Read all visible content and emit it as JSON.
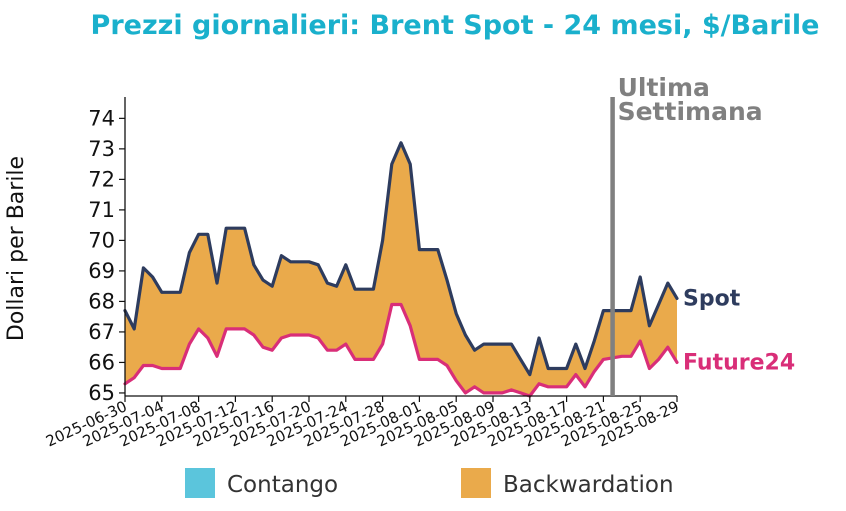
{
  "colors": {
    "title": "#1ab0cc",
    "spot": "#2e3c5e",
    "future": "#d92e78",
    "backwardation": "#eaaa4b",
    "contango": "#5bc5dc",
    "marker": "#808080"
  },
  "chart_data": {
    "type": "area",
    "title": "Prezzi giornalieri: Brent Spot - 24 mesi, $/Barile",
    "ylabel": "Dollari per Barile",
    "xlabel": "",
    "ylim": [
      64.9,
      74.7
    ],
    "xlim": [
      "2025-06-30",
      "2025-08-29"
    ],
    "yticks": [
      65,
      66,
      67,
      68,
      69,
      70,
      71,
      72,
      73,
      74
    ],
    "xticks": [
      "2025-06-30",
      "2025-07-04",
      "2025-07-08",
      "2025-07-12",
      "2025-07-16",
      "2025-07-20",
      "2025-07-24",
      "2025-07-28",
      "2025-08-01",
      "2025-08-05",
      "2025-08-09",
      "2025-08-13",
      "2025-08-17",
      "2025-08-21",
      "2025-08-25",
      "2025-08-29"
    ],
    "grid": false,
    "annotation": {
      "date": "2025-08-22",
      "lines": [
        "Ultima",
        "Settimana"
      ]
    },
    "series": [
      {
        "name": "Spot",
        "points": [
          [
            "2025-06-30",
            67.7
          ],
          [
            "2025-07-01",
            67.1
          ],
          [
            "2025-07-02",
            69.1
          ],
          [
            "2025-07-03",
            68.8
          ],
          [
            "2025-07-04",
            68.3
          ],
          [
            "2025-07-06",
            68.3
          ],
          [
            "2025-07-07",
            69.6
          ],
          [
            "2025-07-08",
            70.2
          ],
          [
            "2025-07-09",
            70.2
          ],
          [
            "2025-07-10",
            68.6
          ],
          [
            "2025-07-11",
            70.4
          ],
          [
            "2025-07-13",
            70.4
          ],
          [
            "2025-07-14",
            69.2
          ],
          [
            "2025-07-15",
            68.7
          ],
          [
            "2025-07-16",
            68.5
          ],
          [
            "2025-07-17",
            69.5
          ],
          [
            "2025-07-18",
            69.3
          ],
          [
            "2025-07-20",
            69.3
          ],
          [
            "2025-07-21",
            69.2
          ],
          [
            "2025-07-22",
            68.6
          ],
          [
            "2025-07-23",
            68.5
          ],
          [
            "2025-07-24",
            69.2
          ],
          [
            "2025-07-25",
            68.4
          ],
          [
            "2025-07-27",
            68.4
          ],
          [
            "2025-07-28",
            70.0
          ],
          [
            "2025-07-29",
            72.5
          ],
          [
            "2025-07-30",
            73.2
          ],
          [
            "2025-07-31",
            72.5
          ],
          [
            "2025-08-01",
            69.7
          ],
          [
            "2025-08-03",
            69.7
          ],
          [
            "2025-08-04",
            68.7
          ],
          [
            "2025-08-05",
            67.6
          ],
          [
            "2025-08-06",
            66.9
          ],
          [
            "2025-08-07",
            66.4
          ],
          [
            "2025-08-08",
            66.6
          ],
          [
            "2025-08-10",
            66.6
          ],
          [
            "2025-08-11",
            66.6
          ],
          [
            "2025-08-12",
            66.1
          ],
          [
            "2025-08-13",
            65.6
          ],
          [
            "2025-08-14",
            66.8
          ],
          [
            "2025-08-15",
            65.8
          ],
          [
            "2025-08-17",
            65.8
          ],
          [
            "2025-08-18",
            66.6
          ],
          [
            "2025-08-19",
            65.8
          ],
          [
            "2025-08-20",
            66.7
          ],
          [
            "2025-08-21",
            67.7
          ],
          [
            "2025-08-23",
            67.7
          ],
          [
            "2025-08-24",
            67.7
          ],
          [
            "2025-08-25",
            68.8
          ],
          [
            "2025-08-26",
            67.2
          ],
          [
            "2025-08-27",
            67.9
          ],
          [
            "2025-08-28",
            68.6
          ],
          [
            "2025-08-29",
            68.1
          ]
        ]
      },
      {
        "name": "Future24",
        "points": [
          [
            "2025-06-30",
            65.3
          ],
          [
            "2025-07-01",
            65.5
          ],
          [
            "2025-07-02",
            65.9
          ],
          [
            "2025-07-03",
            65.9
          ],
          [
            "2025-07-04",
            65.8
          ],
          [
            "2025-07-06",
            65.8
          ],
          [
            "2025-07-07",
            66.6
          ],
          [
            "2025-07-08",
            67.1
          ],
          [
            "2025-07-09",
            66.8
          ],
          [
            "2025-07-10",
            66.2
          ],
          [
            "2025-07-11",
            67.1
          ],
          [
            "2025-07-13",
            67.1
          ],
          [
            "2025-07-14",
            66.9
          ],
          [
            "2025-07-15",
            66.5
          ],
          [
            "2025-07-16",
            66.4
          ],
          [
            "2025-07-17",
            66.8
          ],
          [
            "2025-07-18",
            66.9
          ],
          [
            "2025-07-20",
            66.9
          ],
          [
            "2025-07-21",
            66.8
          ],
          [
            "2025-07-22",
            66.4
          ],
          [
            "2025-07-23",
            66.4
          ],
          [
            "2025-07-24",
            66.6
          ],
          [
            "2025-07-25",
            66.1
          ],
          [
            "2025-07-27",
            66.1
          ],
          [
            "2025-07-28",
            66.6
          ],
          [
            "2025-07-29",
            67.9
          ],
          [
            "2025-07-30",
            67.9
          ],
          [
            "2025-07-31",
            67.2
          ],
          [
            "2025-08-01",
            66.1
          ],
          [
            "2025-08-03",
            66.1
          ],
          [
            "2025-08-04",
            65.9
          ],
          [
            "2025-08-05",
            65.4
          ],
          [
            "2025-08-06",
            65.0
          ],
          [
            "2025-08-07",
            65.2
          ],
          [
            "2025-08-08",
            65.0
          ],
          [
            "2025-08-10",
            65.0
          ],
          [
            "2025-08-11",
            65.1
          ],
          [
            "2025-08-12",
            65.0
          ],
          [
            "2025-08-13",
            64.9
          ],
          [
            "2025-08-14",
            65.3
          ],
          [
            "2025-08-15",
            65.2
          ],
          [
            "2025-08-17",
            65.2
          ],
          [
            "2025-08-18",
            65.6
          ],
          [
            "2025-08-19",
            65.2
          ],
          [
            "2025-08-20",
            65.7
          ],
          [
            "2025-08-21",
            66.1
          ],
          [
            "2025-08-23",
            66.2
          ],
          [
            "2025-08-24",
            66.2
          ],
          [
            "2025-08-25",
            66.7
          ],
          [
            "2025-08-26",
            65.8
          ],
          [
            "2025-08-27",
            66.1
          ],
          [
            "2025-08-28",
            66.5
          ],
          [
            "2025-08-29",
            66.0
          ]
        ]
      }
    ],
    "legend": {
      "placement": "bottom",
      "entries": [
        {
          "label": "Contango",
          "color": "#5bc5dc"
        },
        {
          "label": "Backwardation",
          "color": "#eaaa4b"
        }
      ]
    }
  }
}
